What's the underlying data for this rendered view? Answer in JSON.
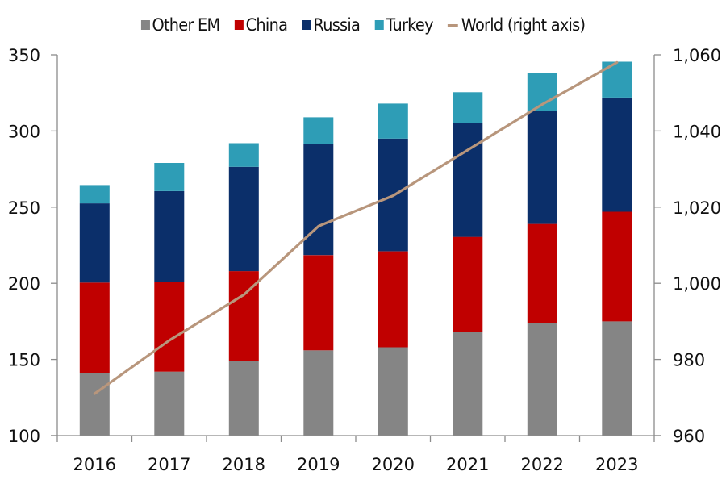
{
  "chart_data": {
    "type": "bar",
    "subtype": "stacked-bar-with-line",
    "title": "",
    "categories": [
      "2016",
      "2017",
      "2018",
      "2019",
      "2020",
      "2021",
      "2022",
      "2023"
    ],
    "series": [
      {
        "name": "Other EM",
        "type": "bar",
        "axis": "left",
        "color": "#858585",
        "values": [
          141,
          142,
          149,
          156,
          158,
          168,
          174,
          175
        ]
      },
      {
        "name": "China",
        "type": "bar",
        "axis": "left",
        "color": "#c00000",
        "values": [
          59.5,
          59,
          59,
          62.5,
          63,
          62.5,
          65,
          72
        ]
      },
      {
        "name": "Russia",
        "type": "bar",
        "axis": "left",
        "color": "#0b2f6a",
        "values": [
          52,
          59.5,
          68.5,
          73,
          74,
          74.5,
          74,
          75
        ]
      },
      {
        "name": "Turkey",
        "type": "bar",
        "axis": "left",
        "color": "#2e9db6",
        "values": [
          12,
          18.5,
          15.5,
          17.5,
          23,
          20.5,
          25,
          23.5
        ]
      },
      {
        "name": "World (right axis)",
        "type": "line",
        "axis": "right",
        "color": "#b8967c",
        "values": [
          971,
          985,
          997,
          1015,
          1023,
          1035,
          1047,
          1058
        ]
      }
    ],
    "left_axis": {
      "label": "",
      "range": [
        100,
        350
      ],
      "ticks": [
        100,
        150,
        200,
        250,
        300,
        350
      ],
      "tick_labels": [
        "100",
        "150",
        "200",
        "250",
        "300",
        "350"
      ]
    },
    "right_axis": {
      "label": "",
      "range": [
        960,
        1060
      ],
      "ticks": [
        960,
        980,
        1000,
        1020,
        1040,
        1060
      ],
      "tick_labels": [
        "960",
        "980",
        "1,000",
        "1,020",
        "1,040",
        "1,060"
      ]
    },
    "xlabel": "",
    "grid": false,
    "legend": {
      "position": "top-center",
      "entries": [
        "Other EM",
        "China",
        "Russia",
        "Turkey",
        "World (right axis)"
      ]
    }
  }
}
